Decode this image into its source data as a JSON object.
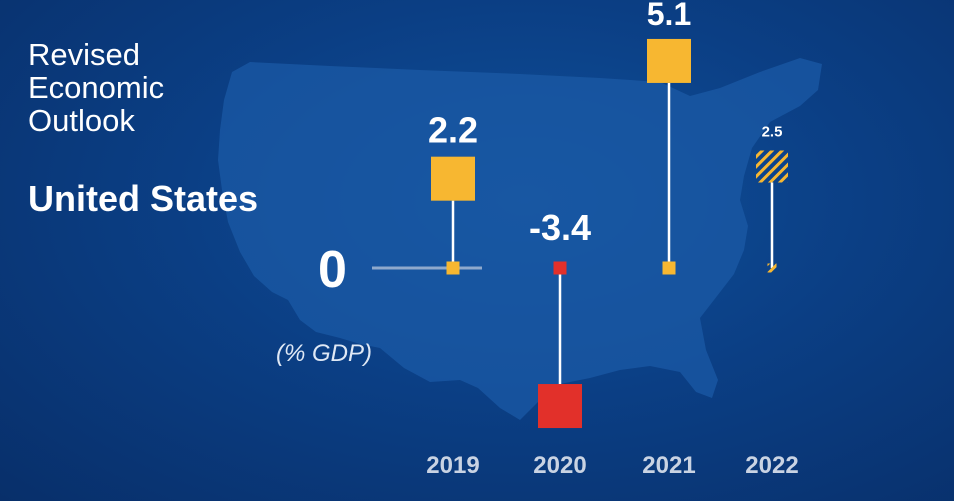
{
  "header": {
    "title_lines": [
      "Revised",
      "Economic",
      "Outlook"
    ],
    "country": "United States"
  },
  "colors": {
    "background": "#0b3f85",
    "map": "#1b5aa6",
    "positive": "#f7b731",
    "negative": "#e2302a",
    "zero_line": "#8fa9cc",
    "connector": "#ffffff"
  },
  "chart_data": {
    "type": "bar",
    "subtype": "floating-square-markers",
    "title": "Revised Economic Outlook",
    "subtitle": "United States",
    "ylabel": "(% GDP)",
    "zero_label": "0",
    "categories": [
      "2019",
      "2020",
      "2021",
      "2022"
    ],
    "values": [
      2.2,
      -3.4,
      5.1,
      2.5
    ],
    "value_labels": [
      "2.2",
      "-3.4",
      "5.1",
      "2.5"
    ],
    "projected": [
      false,
      false,
      false,
      true
    ],
    "grid": false,
    "legend": "none"
  }
}
